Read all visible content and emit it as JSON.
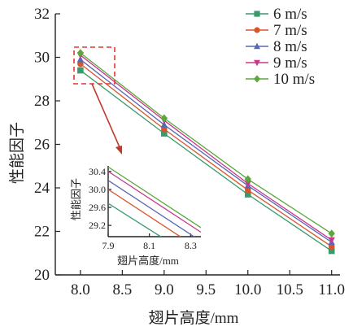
{
  "chart_data": {
    "type": "line",
    "xlabel": "翅片高度/mm",
    "ylabel": "性能因子",
    "x": [
      8.0,
      9.0,
      10.0,
      11.0
    ],
    "x_ticks": [
      "8.0",
      "8.5",
      "9.0",
      "9.5",
      "10.0",
      "10.5",
      "11.0"
    ],
    "y_ticks": [
      "20",
      "22",
      "24",
      "26",
      "28",
      "30",
      "32"
    ],
    "xlim": [
      7.7,
      11.1
    ],
    "ylim": [
      20,
      32
    ],
    "grid": false,
    "legend_position": "top-right",
    "series": [
      {
        "name": "6 m/s",
        "color": "#3a9a6b",
        "marker": "square",
        "values": [
          29.4,
          26.5,
          23.7,
          21.1
        ]
      },
      {
        "name": "7 m/s",
        "color": "#d9542a",
        "marker": "circle",
        "values": [
          29.7,
          26.7,
          23.9,
          21.3
        ]
      },
      {
        "name": "8 m/s",
        "color": "#5a68b4",
        "marker": "triangle-up",
        "values": [
          29.9,
          26.9,
          24.1,
          21.5
        ]
      },
      {
        "name": "9 m/s",
        "color": "#c8388f",
        "marker": "triangle-down",
        "values": [
          30.1,
          27.1,
          24.2,
          21.6
        ]
      },
      {
        "name": "10 m/s",
        "color": "#5aa83c",
        "marker": "diamond",
        "values": [
          30.2,
          27.2,
          24.4,
          21.9
        ]
      }
    ],
    "inset": {
      "xlabel": "翅片高度/mm",
      "ylabel": "性能因子",
      "xlim": [
        7.9,
        8.35
      ],
      "ylim": [
        28.95,
        30.45
      ],
      "x_ticks": [
        "7.9",
        "8.1",
        "8.3"
      ],
      "y_ticks": [
        "29.2",
        "29.6",
        "30.0",
        "30.4"
      ]
    }
  }
}
